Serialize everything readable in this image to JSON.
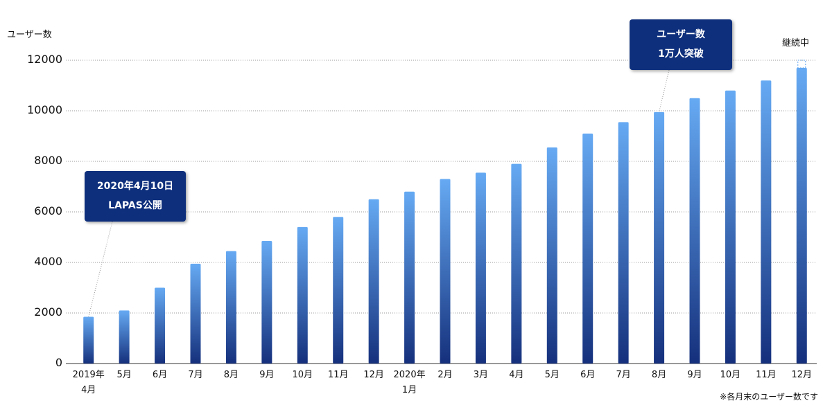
{
  "chart_data": {
    "type": "bar",
    "y_axis_label": "ユーザー数",
    "categories": [
      "2019年\n4月",
      "5月",
      "6月",
      "7月",
      "8月",
      "9月",
      "10月",
      "11月",
      "12月",
      "2020年\n1月",
      "2月",
      "3月",
      "4月",
      "5月",
      "6月",
      "7月",
      "8月",
      "9月",
      "10月",
      "11月",
      "12月"
    ],
    "values": [
      1850,
      2100,
      3000,
      3950,
      4450,
      4850,
      5400,
      5800,
      6500,
      6800,
      7300,
      7550,
      7900,
      8550,
      9100,
      9550,
      9950,
      10500,
      10800,
      11200,
      11700
    ],
    "colors": [
      "#66aaf3",
      "#15307c"
    ],
    "ylim": [
      0,
      12000
    ],
    "yticks": [
      0,
      2000,
      4000,
      6000,
      8000,
      10000,
      12000
    ],
    "grid": true,
    "annotations": [
      "2020年4月10日\nLAPAS公開",
      "ユーザー数\n1万人突破",
      "継続中"
    ],
    "footnote": "※各月末のユーザー数です"
  }
}
